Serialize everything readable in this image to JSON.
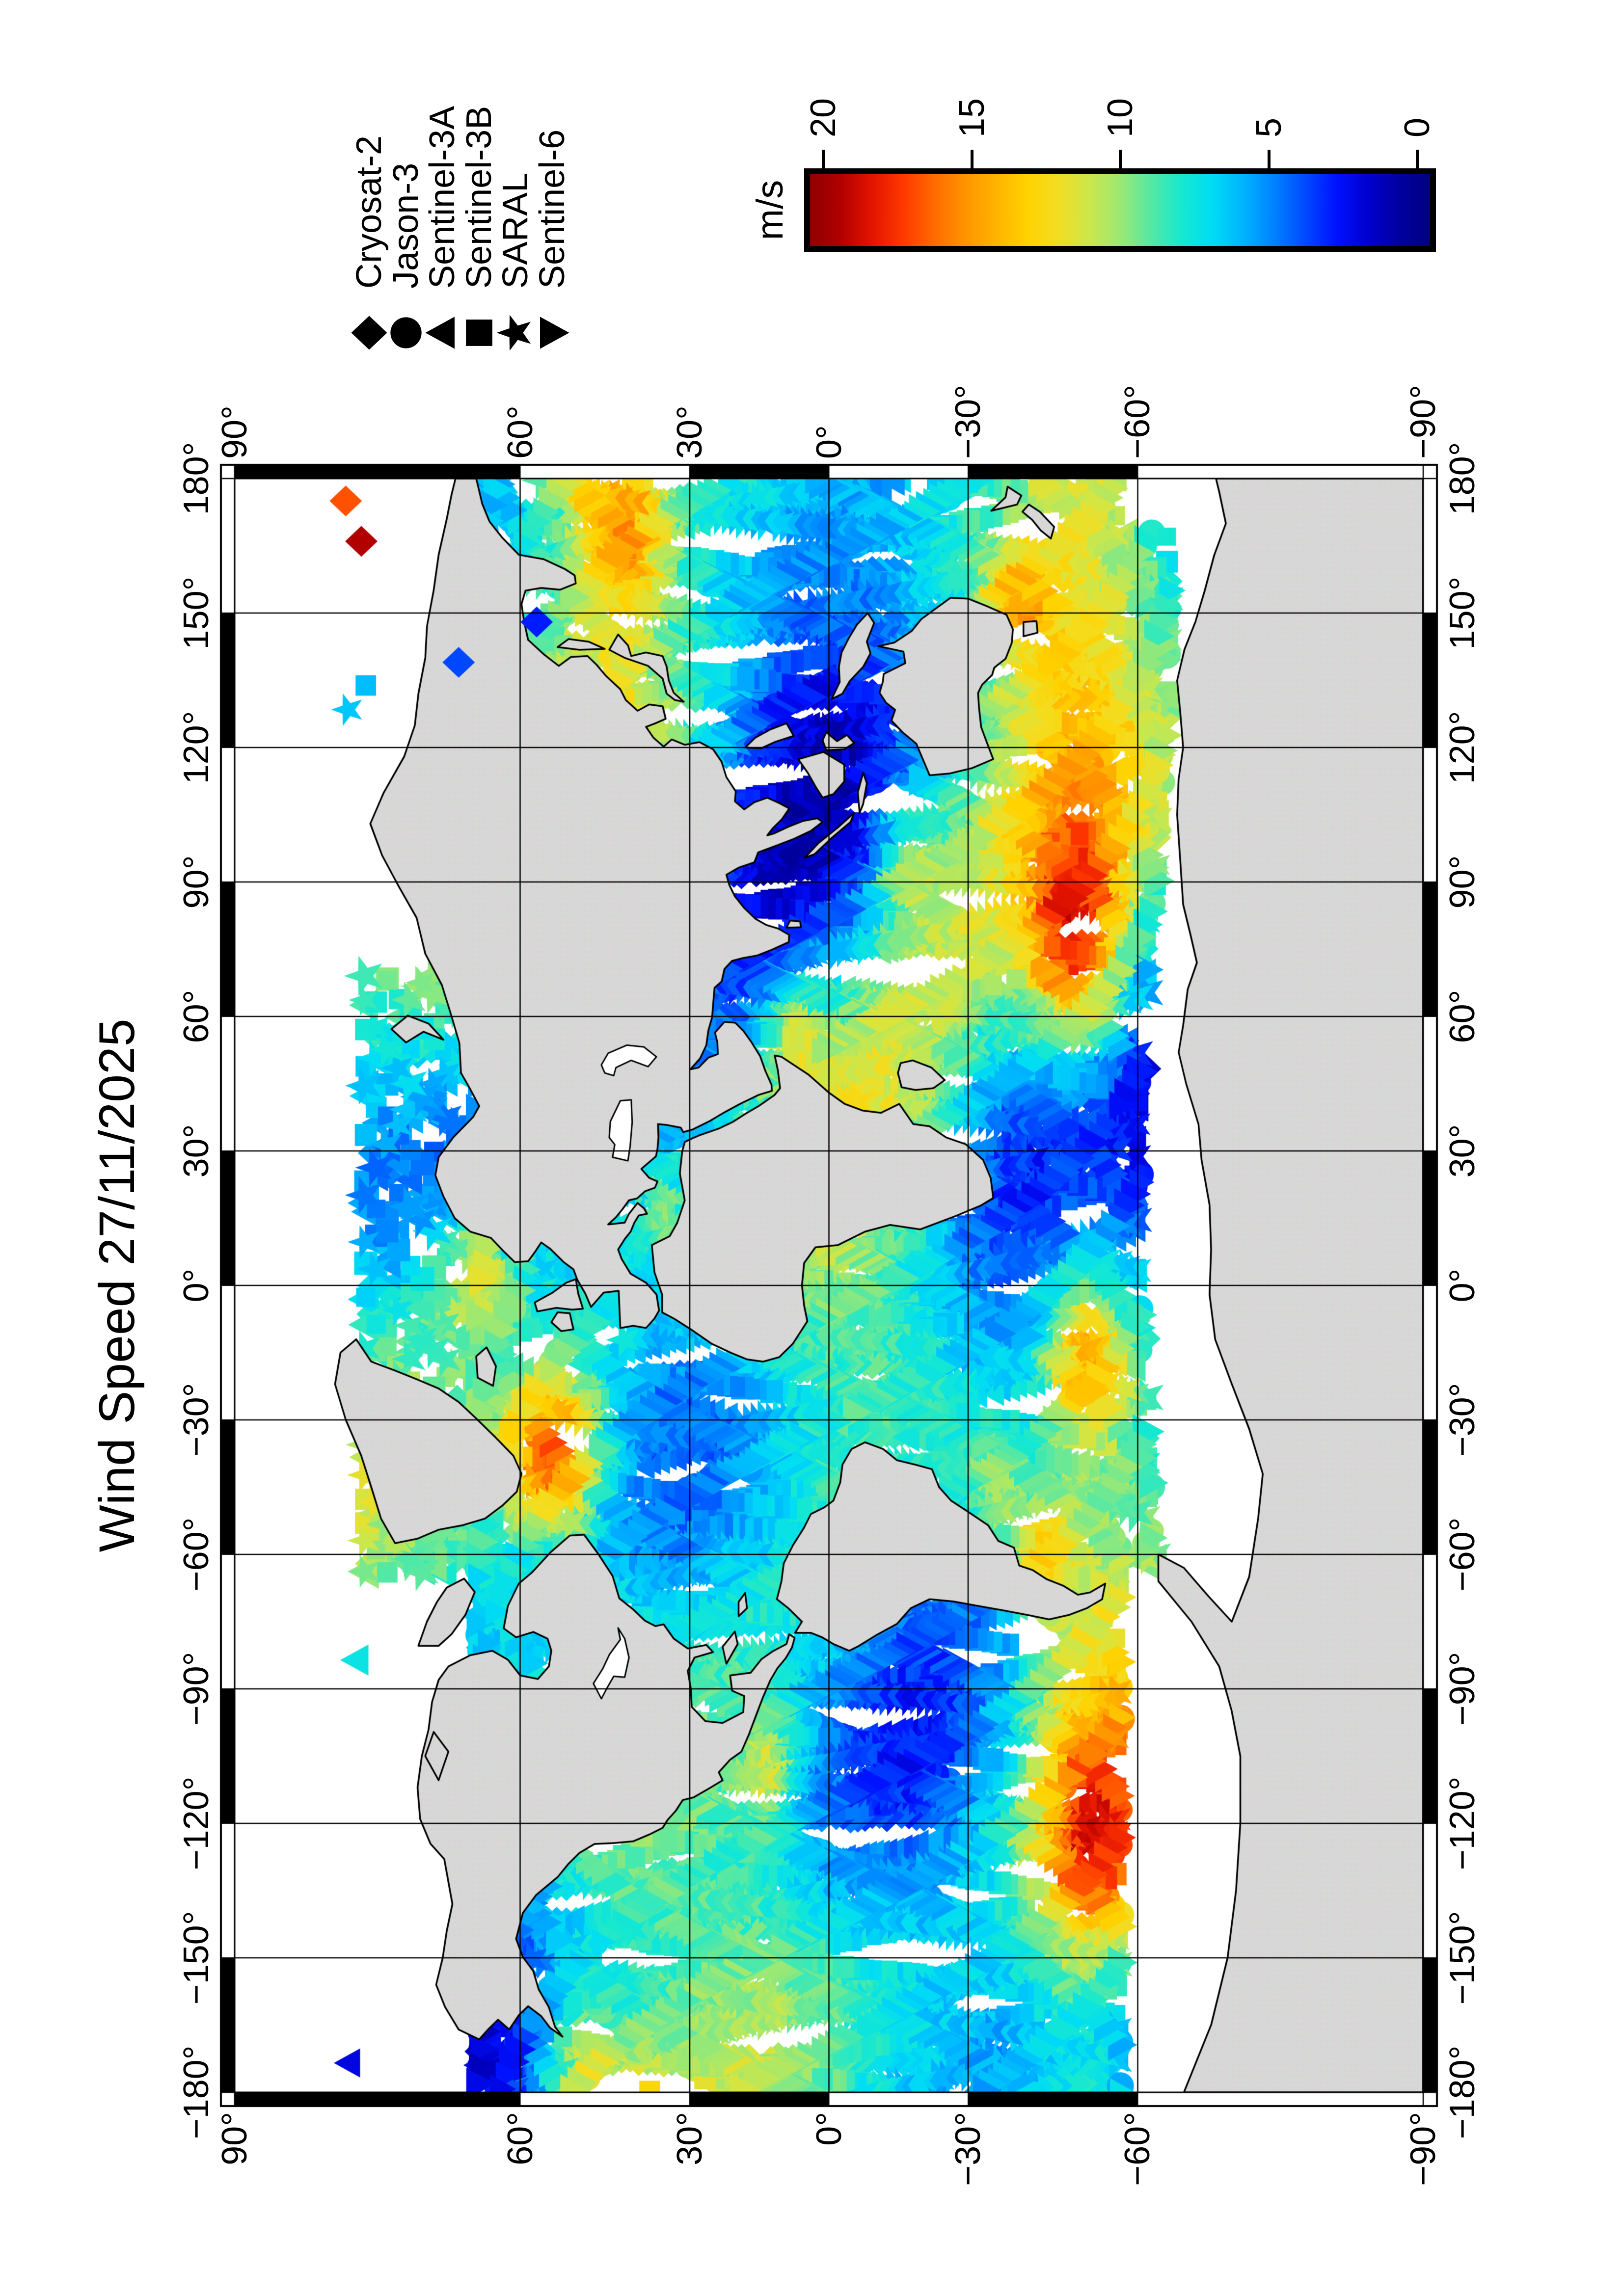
{
  "title": "Wind Speed 27/11/2025",
  "legend": {
    "items": [
      {
        "label": "Cryosat-2",
        "symbol": "diamond"
      },
      {
        "label": "Jason-3",
        "symbol": "circle"
      },
      {
        "label": "Sentinel-3A",
        "symbol": "triangle-up"
      },
      {
        "label": "Sentinel-3B",
        "symbol": "square"
      },
      {
        "label": "SARAL",
        "symbol": "star"
      },
      {
        "label": "Sentinel-6",
        "symbol": "triangle-down"
      }
    ]
  },
  "colorbar": {
    "label": "m/s",
    "min": 0,
    "max": 20,
    "tick_labels": [
      "20",
      "15",
      "10",
      "5",
      "0"
    ],
    "tick_values": [
      20,
      15,
      10,
      5,
      0
    ],
    "stops": [
      [
        0,
        "#000080"
      ],
      [
        1,
        "#0000a0"
      ],
      [
        2,
        "#0000cd"
      ],
      [
        3,
        "#0010ff"
      ],
      [
        4,
        "#0048ff"
      ],
      [
        5,
        "#0080ff"
      ],
      [
        6,
        "#00b2ff"
      ],
      [
        7,
        "#00dcf5"
      ],
      [
        8,
        "#16e8d0"
      ],
      [
        9,
        "#55e8a4"
      ],
      [
        10,
        "#9ce873"
      ],
      [
        11,
        "#cce74a"
      ],
      [
        12,
        "#f2dd22"
      ],
      [
        13,
        "#ffd200"
      ],
      [
        14,
        "#ffb300"
      ],
      [
        15,
        "#ff9400"
      ],
      [
        16,
        "#ff6a00"
      ],
      [
        17,
        "#ff3800"
      ],
      [
        18,
        "#e31400"
      ],
      [
        19,
        "#b20000"
      ],
      [
        20,
        "#8e0000"
      ]
    ]
  },
  "axes": {
    "lat_tick_labels": [
      "90°",
      "60°",
      "30°",
      "0°",
      "−30°",
      "−60°",
      "−90°"
    ],
    "lat_tick_values": [
      90,
      60,
      30,
      0,
      -30,
      -60,
      -90
    ],
    "lon_tick_labels": [
      "−180°",
      "−150°",
      "−120°",
      "−90°",
      "−60°",
      "−30°",
      "0°",
      "30°",
      "60°",
      "90°",
      "120°",
      "150°",
      "180°"
    ],
    "lon_tick_values": [
      -180,
      -150,
      -120,
      -90,
      -60,
      -30,
      0,
      30,
      60,
      90,
      120,
      150,
      180
    ]
  },
  "map": {
    "land_color": "#d7d7d7",
    "ocean_color": "#ffffff",
    "coast_color": "#000000",
    "frame_style": "black-white checker, 30 degree segments"
  },
  "chart_data": {
    "type": "scatter",
    "title": "Wind Speed 27/11/2025",
    "units": "m/s",
    "value_range": [
      0,
      20
    ],
    "projection": "miller",
    "lon_range": [
      -180,
      180
    ],
    "lat_range": [
      -90,
      90
    ],
    "graticule_deg": 30,
    "series": [
      {
        "name": "Cryosat-2",
        "symbol": "diamond",
        "max_lat": 88,
        "slant": -1,
        "passes": 13,
        "marker_size": 33,
        "seed": 101,
        "offset": 12
      },
      {
        "name": "Jason-3",
        "symbol": "circle",
        "max_lat": 66,
        "slant": 1,
        "passes": 13,
        "marker_size": 30,
        "seed": 202,
        "offset": 151
      },
      {
        "name": "Sentinel-3A",
        "symbol": "triangle-up",
        "max_lat": 81.4,
        "slant": -1,
        "passes": 14,
        "marker_size": 32,
        "seed": 303,
        "offset": 258
      },
      {
        "name": "Sentinel-3B",
        "symbol": "square",
        "max_lat": 81.4,
        "slant": -1,
        "passes": 14,
        "marker_size": 28,
        "seed": 404,
        "offset": 64
      },
      {
        "name": "SARAL",
        "symbol": "star",
        "max_lat": 81.5,
        "slant": -1,
        "passes": 14,
        "marker_size": 34,
        "seed": 505,
        "offset": 205
      },
      {
        "name": "Sentinel-6",
        "symbol": "triangle-down",
        "max_lat": 66,
        "slant": 1,
        "passes": 13,
        "marker_size": 32,
        "seed": 606,
        "offset": 318
      }
    ],
    "wind_features": [
      {
        "lon": -38,
        "lat": 55,
        "amp": 9,
        "slon": 17,
        "slat": 7
      },
      {
        "lon": 3,
        "lat": 66,
        "amp": 5,
        "slon": 13,
        "slat": 6
      },
      {
        "lon": 168,
        "lat": 43,
        "amp": 6,
        "slon": 18,
        "slat": 8
      },
      {
        "lon": 75,
        "lat": -50,
        "amp": 7.5,
        "slon": 24,
        "slat": 8
      },
      {
        "lon": -15,
        "lat": -52,
        "amp": 6,
        "slon": 18,
        "slat": 7
      },
      {
        "lon": -125,
        "lat": -53,
        "amp": 6,
        "slon": 22,
        "slat": 8
      },
      {
        "lon": 58,
        "lat": 9,
        "amp": 4,
        "slon": 13,
        "slat": 6
      },
      {
        "lon": -108,
        "lat": 14,
        "amp": 3.5,
        "slon": 14,
        "slat": 6
      },
      {
        "lon": 17,
        "lat": 36,
        "amp": 3,
        "slon": 9,
        "slat": 4
      },
      {
        "lon": 96,
        "lat": -16,
        "amp": 3,
        "slon": 16,
        "slat": 7
      },
      {
        "lon": 152,
        "lat": -39,
        "amp": 4.5,
        "slon": 12,
        "slat": 6
      },
      {
        "lon": -60,
        "lat": -43,
        "amp": 5,
        "slon": 12,
        "slat": 6
      },
      {
        "lon": -170,
        "lat": 52,
        "amp": 4,
        "slon": 16,
        "slat": 6
      },
      {
        "lon": -45,
        "lat": -34,
        "amp": 3,
        "slon": 12,
        "slat": 6
      }
    ],
    "extra_points": [
      {
        "lon": 175,
        "lat": 81,
        "v": 16.5,
        "series": "Cryosat-2"
      },
      {
        "lon": 166,
        "lat": 79.5,
        "v": 19,
        "series": "Cryosat-2"
      },
      {
        "lon": 139,
        "lat": 68.5,
        "v": 4,
        "series": "Cryosat-2"
      },
      {
        "lon": 148,
        "lat": 57.5,
        "v": 3.2,
        "series": "Cryosat-2"
      }
    ]
  }
}
